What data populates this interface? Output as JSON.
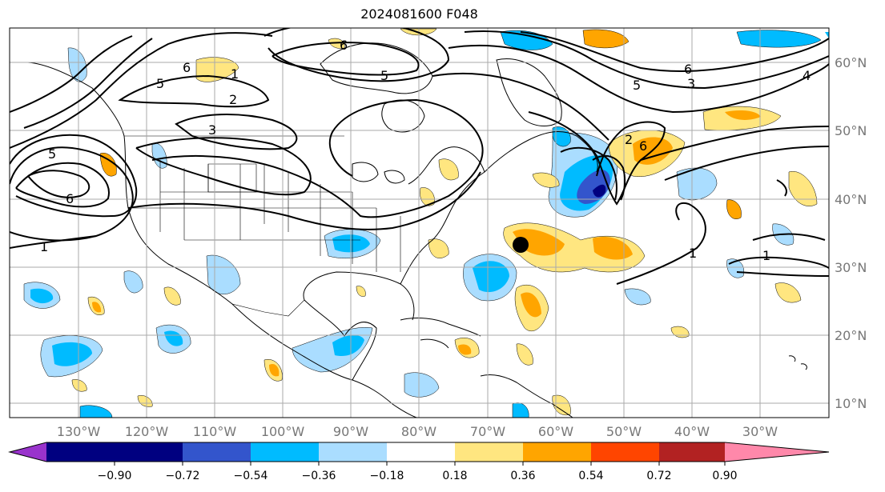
{
  "title": "2024081600 F048",
  "lat_labels": [
    "60°N",
    "50°N",
    "40°N",
    "30°N",
    "20°N",
    "10°N"
  ],
  "lon_labels": [
    "130°W",
    "120°W",
    "110°W",
    "100°W",
    "90°W",
    "80°W",
    "70°W",
    "60°W",
    "50°W",
    "40°W",
    "30°W"
  ],
  "colorbar": {
    "ticks": [
      "−0.90",
      "−0.72",
      "−0.54",
      "−0.36",
      "−0.18",
      "0.18",
      "0.36",
      "0.54",
      "0.72",
      "0.90"
    ],
    "colors": {
      "under": "#9933cc",
      "lt_m090": "#000080",
      "m090_m072": "#3355cc",
      "m072_m054": "#00bbff",
      "m054_m036": "#00bbff",
      "m036_m018": "#aaddff",
      "neutral": "#ffffff",
      "p018_p036": "#ffe680",
      "p036_p054": "#ffa500",
      "p054_p072": "#ff4500",
      "p072_p090": "#b22222",
      "over": "#ff88aa"
    }
  },
  "contour_labels": [
    "1",
    "2",
    "3",
    "4",
    "5",
    "6"
  ],
  "colors": {
    "light_blue": "#aaddff",
    "blue": "#00bbff",
    "royal": "#3355cc",
    "navy": "#000080",
    "yellow": "#ffe680",
    "orange": "#ffa500",
    "grid": "#aaaaaa"
  }
}
